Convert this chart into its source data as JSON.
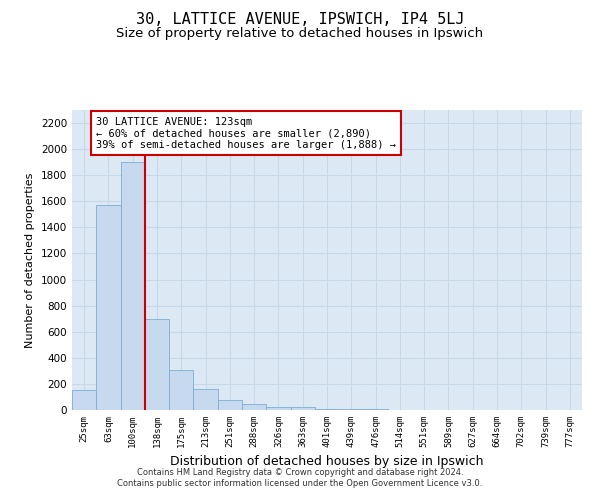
{
  "title1": "30, LATTICE AVENUE, IPSWICH, IP4 5LJ",
  "title2": "Size of property relative to detached houses in Ipswich",
  "xlabel": "Distribution of detached houses by size in Ipswich",
  "ylabel": "Number of detached properties",
  "bar_labels": [
    "25sqm",
    "63sqm",
    "100sqm",
    "138sqm",
    "175sqm",
    "213sqm",
    "251sqm",
    "288sqm",
    "326sqm",
    "363sqm",
    "401sqm",
    "439sqm",
    "476sqm",
    "514sqm",
    "551sqm",
    "589sqm",
    "627sqm",
    "664sqm",
    "702sqm",
    "739sqm",
    "777sqm"
  ],
  "bar_values": [
    150,
    1570,
    1900,
    700,
    310,
    160,
    80,
    45,
    25,
    20,
    10,
    5,
    5,
    2,
    2,
    2,
    1,
    1,
    1,
    1,
    0
  ],
  "bar_color": "#c6d9ee",
  "bar_edge_color": "#7aaed4",
  "vline_x": 2.5,
  "annotation_line1": "30 LATTICE AVENUE: 123sqm",
  "annotation_line2": "← 60% of detached houses are smaller (2,890)",
  "annotation_line3": "39% of semi-detached houses are larger (1,888) →",
  "annotation_box_color": "#ffffff",
  "annotation_box_edge": "#cc0000",
  "vline_color": "#cc0000",
  "ylim": [
    0,
    2300
  ],
  "yticks": [
    0,
    200,
    400,
    600,
    800,
    1000,
    1200,
    1400,
    1600,
    1800,
    2000,
    2200
  ],
  "grid_color": "#c8d8e8",
  "bg_color": "#dce9f5",
  "footer1": "Contains HM Land Registry data © Crown copyright and database right 2024.",
  "footer2": "Contains public sector information licensed under the Open Government Licence v3.0.",
  "title1_fontsize": 11,
  "title2_fontsize": 9.5,
  "xlabel_fontsize": 9,
  "ylabel_fontsize": 8
}
